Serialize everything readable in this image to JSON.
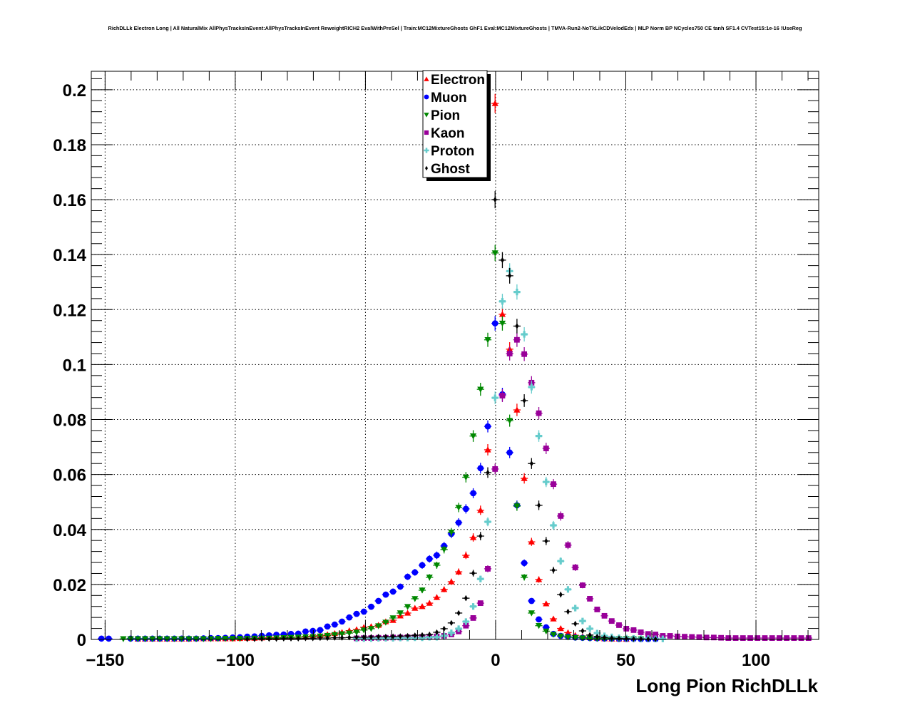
{
  "chart_data": {
    "type": "scatter",
    "title": "RichDLLk Electron Long | All NaturalMix AllPhysTracksInEvent:AllPhysTracksInEvent ReweightRICH2 EvalWithPreSel | Train:MC12MixtureGhosts GhF1 Eval:MC12MixtureGhosts | TMVA-Run2-NoTkLikCDVelodEdx | MLP Norm BP NCycles750 CE tanh SF1.4 CVTest15:1e-16 !UseReg",
    "xlabel": "Long Pion RichDLLk",
    "ylabel": "",
    "xlim": [
      -155.3,
      124.1
    ],
    "ylim": [
      0,
      0.2067
    ],
    "grid": true,
    "bin_width": 2.8,
    "x_ticks": [
      -150,
      -100,
      -50,
      0,
      50,
      100
    ],
    "x_tick_labels": [
      "−150",
      "−100",
      "−50",
      "0",
      "50",
      "100"
    ],
    "y_ticks": [
      0,
      0.02,
      0.04,
      0.06,
      0.08,
      0.1,
      0.12,
      0.14,
      0.16,
      0.18,
      0.2
    ],
    "y_tick_labels": [
      "0",
      "0.02",
      "0.04",
      "0.06",
      "0.08",
      "0.1",
      "0.12",
      "0.14",
      "0.16",
      "0.18",
      "0.2"
    ],
    "legend_position": "top-center",
    "series": [
      {
        "name": "Electron",
        "marker": "triangle-up",
        "color": "#ff0000",
        "x_first": -137.4,
        "values": [
          0.0002,
          0.0002,
          0.0002,
          0.0002,
          0.0002,
          0.0002,
          0.0002,
          0.0002,
          0.0003,
          0.0003,
          0.0003,
          0.0003,
          0.0003,
          0.0003,
          0.0004,
          0.0005,
          0.0005,
          0.0006,
          0.0007,
          0.0007,
          0.0008,
          0.0008,
          0.0009,
          0.0011,
          0.0013,
          0.0015,
          0.0018,
          0.0022,
          0.0026,
          0.0032,
          0.0036,
          0.0044,
          0.0047,
          0.0052,
          0.0065,
          0.007,
          0.0086,
          0.0096,
          0.0114,
          0.012,
          0.0132,
          0.0153,
          0.0182,
          0.021,
          0.0246,
          0.0306,
          0.0371,
          0.047,
          0.069,
          0.195,
          0.1183,
          0.1056,
          0.0835,
          0.0586,
          0.0355,
          0.0218,
          0.013,
          0.0075,
          0.004,
          0.0025,
          0.0015,
          0.001,
          0.0007,
          0.0005,
          0.0003,
          0.0002,
          0.0002,
          0.0001
        ]
      },
      {
        "name": "Muon",
        "marker": "circle",
        "color": "#0000ff",
        "x_first": -151.4,
        "values": [
          0.0003,
          0.0003,
          null,
          null,
          0.0003,
          0.0003,
          0.0003,
          0.0003,
          0.0003,
          0.0003,
          0.0003,
          0.0003,
          0.0003,
          0.0003,
          0.0004,
          0.0005,
          0.0005,
          0.0006,
          0.0007,
          0.0008,
          0.001,
          0.0011,
          0.0013,
          0.0015,
          0.0017,
          0.0018,
          0.002,
          0.0021,
          0.0029,
          0.0031,
          0.0034,
          0.0047,
          0.0054,
          0.0065,
          0.008,
          0.0093,
          0.0101,
          0.0119,
          0.014,
          0.0163,
          0.0174,
          0.0192,
          0.0228,
          0.0244,
          0.027,
          0.0293,
          0.0306,
          0.034,
          0.0384,
          0.0425,
          0.0475,
          0.0532,
          0.0623,
          0.0775,
          0.115,
          0.0892,
          0.068,
          0.0488,
          0.0278,
          0.014,
          0.0073,
          0.0044,
          0.002,
          0.0013,
          0.001,
          0.0007,
          0.0006,
          0.0005,
          0.0004,
          0.0003,
          0.0003,
          0.0002,
          0.0002,
          0.0002,
          0.0001,
          0.0001,
          0.0001
        ]
      },
      {
        "name": "Pion",
        "marker": "triangle-down",
        "color": "#008800",
        "x_first": -143.0,
        "values": [
          0.0002,
          0.0002,
          0.0002,
          0.0002,
          0.0002,
          0.0002,
          0.0002,
          0.0002,
          0.0002,
          0.0002,
          0.0002,
          0.0002,
          0.0002,
          0.0003,
          0.0003,
          0.0003,
          0.0003,
          0.0003,
          0.0004,
          0.0004,
          0.0004,
          0.0005,
          0.0006,
          0.0007,
          0.0008,
          0.0009,
          0.001,
          0.0012,
          0.0014,
          0.0017,
          0.002,
          0.0023,
          0.0026,
          0.0034,
          0.0039,
          0.0049,
          0.0062,
          0.0078,
          0.0096,
          0.0119,
          0.0148,
          0.0179,
          0.0226,
          0.027,
          0.0327,
          0.039,
          0.048,
          0.059,
          0.074,
          0.091,
          0.109,
          0.1406,
          0.115,
          0.0796,
          0.0485,
          0.0226,
          0.0096,
          0.005,
          0.003,
          0.0018,
          0.0012,
          0.0008,
          0.0006,
          0.0005,
          0.0004,
          0.0003,
          0.0003,
          0.0002,
          0.0002,
          0.0002,
          0.0001,
          0.0001
        ]
      },
      {
        "name": "Kaon",
        "marker": "square",
        "color": "#990099",
        "x_first": -53.4,
        "values": [
          0.0004,
          0.0005,
          0.0005,
          0.0006,
          0.0006,
          0.0007,
          0.0007,
          0.0008,
          0.0008,
          0.0009,
          0.001,
          0.0011,
          0.0013,
          0.0018,
          0.0029,
          0.005,
          0.0078,
          0.0132,
          0.0257,
          0.062,
          0.0887,
          0.104,
          0.109,
          0.1038,
          0.0934,
          0.0823,
          0.0695,
          0.0565,
          0.0449,
          0.0343,
          0.0262,
          0.0197,
          0.0148,
          0.0109,
          0.0086,
          0.0067,
          0.0052,
          0.0039,
          0.0034,
          0.0026,
          0.002,
          0.0018,
          0.0013,
          0.0013,
          0.0011,
          0.001,
          0.0009,
          0.0008,
          0.0007,
          0.0007,
          0.0006,
          0.0005,
          0.0005,
          0.0005,
          0.0005,
          0.0005,
          0.0005,
          0.0005,
          0.0005,
          0.0005,
          0.0005,
          0.0005,
          0.0005
        ]
      },
      {
        "name": "Proton",
        "marker": "cross",
        "color": "#66cccc",
        "x_first": -53.4,
        "values": [
          0.0003,
          0.0003,
          0.0003,
          0.0004,
          0.0004,
          0.0004,
          0.0005,
          0.0005,
          0.0006,
          0.0006,
          0.0008,
          0.0008,
          0.0013,
          0.0024,
          0.0039,
          0.0065,
          0.012,
          0.022,
          0.0428,
          0.0879,
          0.123,
          0.134,
          0.1264,
          0.111,
          0.0918,
          0.074,
          0.0573,
          0.0415,
          0.0285,
          0.0182,
          0.0114,
          0.0067,
          0.0039,
          0.0023,
          0.0013,
          0.0009,
          0.0006,
          0.0005,
          0.0004,
          0.0003,
          0.0003,
          0.0002,
          0.0002
        ]
      },
      {
        "name": "Ghost",
        "marker": "diamond",
        "color": "#000000",
        "x_first": -95.4,
        "values": [
          0.0001,
          0.0001,
          0.0002,
          0.0002,
          0.0002,
          0.0003,
          0.0003,
          0.0003,
          0.0004,
          0.0004,
          0.0005,
          0.0005,
          0.0006,
          0.0006,
          0.0007,
          0.0008,
          0.0008,
          0.0009,
          0.001,
          0.001,
          0.0011,
          0.0012,
          0.0013,
          0.0015,
          0.0016,
          0.0018,
          0.0026,
          0.0039,
          0.006,
          0.0096,
          0.015,
          0.0241,
          0.0376,
          0.0607,
          0.16,
          0.138,
          0.1323,
          0.114,
          0.0869,
          0.064,
          0.0488,
          0.0358,
          0.0252,
          0.0163,
          0.0101,
          0.0057,
          0.0031,
          0.0016,
          0.001,
          0.0007,
          0.0005,
          0.0004,
          0.0003,
          0.0002,
          0.0002,
          0.0001,
          0.0001
        ]
      }
    ]
  }
}
